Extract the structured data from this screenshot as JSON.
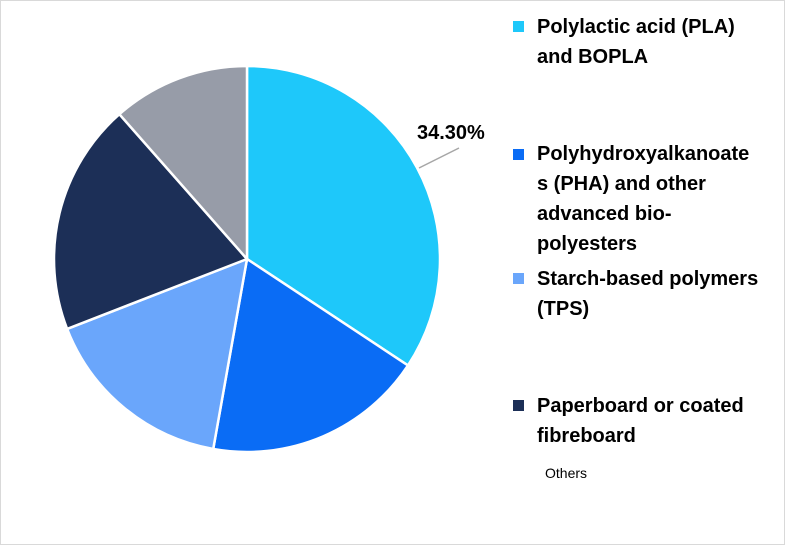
{
  "chart_data": {
    "type": "pie",
    "slices": [
      {
        "label": "Polylactic acid (PLA) and BOPLA",
        "value": 34.3,
        "color": "#1ec8fa",
        "data_label": "34.30%"
      },
      {
        "label": "Polyhydroxyalkanoates (PHA) and other advanced bio-polyesters",
        "value": 18.5,
        "color": "#0a6cf5"
      },
      {
        "label": "Starch-based polymers (TPS)",
        "value": 16.3,
        "color": "#6aa6fb"
      },
      {
        "label": "Paperboard or coated fibreboard",
        "value": 19.4,
        "color": "#1c2f57"
      },
      {
        "label": "Others",
        "value": 11.5,
        "color": "#979ca8"
      }
    ],
    "legend": {
      "placement": "right",
      "entries": [
        "Polylactic acid (PLA)\nand BOPLA",
        "Polyhydroxyalkanoate\ns (PHA) and other\nadvanced bio-\npolyesters",
        "Starch-based polymers\n(TPS)",
        "Paperboard or coated\nfibreboard",
        "Others"
      ]
    }
  }
}
